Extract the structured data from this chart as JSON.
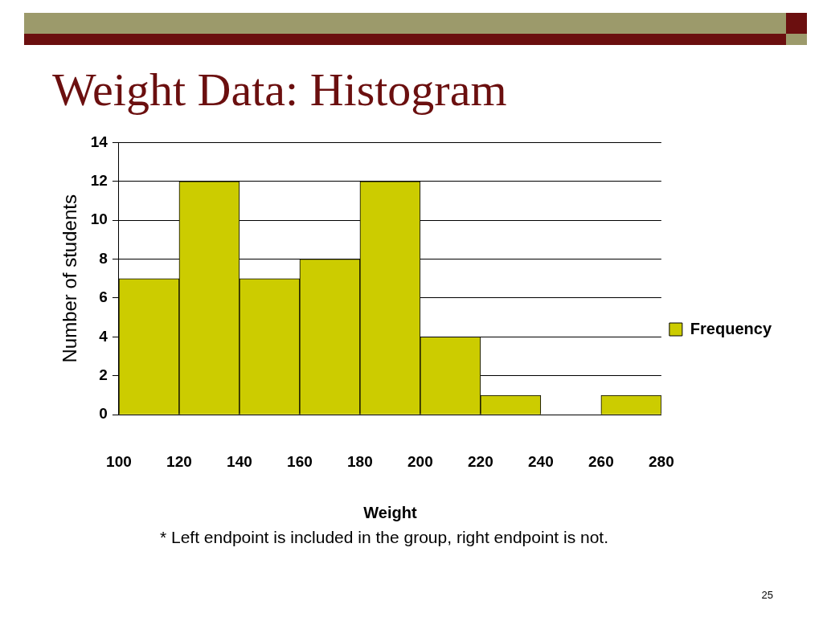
{
  "chart_data": {
    "type": "histogram",
    "title": "Weight Data: Histogram",
    "xlabel": "Weight",
    "ylabel": "Number of students",
    "bins": [
      100,
      120,
      140,
      160,
      180,
      200,
      220,
      240,
      260,
      280
    ],
    "series": [
      {
        "name": "Frequency",
        "color": "#cccc00",
        "values": [
          7,
          12,
          7,
          8,
          12,
          4,
          1,
          0,
          1
        ]
      }
    ],
    "xlim": [
      100,
      280
    ],
    "xticks": [
      100,
      120,
      140,
      160,
      180,
      200,
      220,
      240,
      260,
      280
    ],
    "ylim": [
      0,
      14
    ],
    "yticks": [
      0,
      2,
      4,
      6,
      8,
      10,
      12,
      14
    ],
    "grid": "y",
    "legend": "right",
    "annotations": [
      "* Left endpoint is included in the group, right endpoint is not.",
      "25"
    ]
  }
}
